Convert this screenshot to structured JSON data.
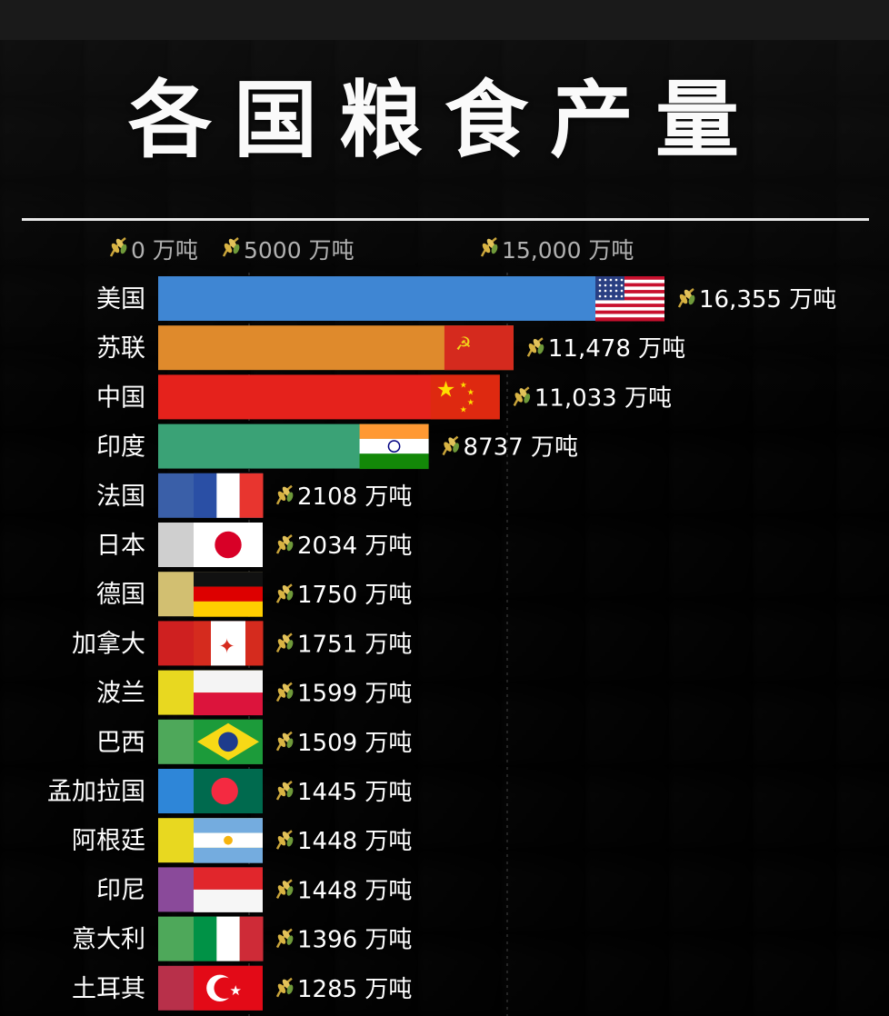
{
  "title": "各国粮食产量",
  "chart_data": {
    "type": "bar",
    "orientation": "horizontal",
    "title": "各国粮食产量",
    "unit": "万吨",
    "ticks": [
      "0 万吨",
      "5000 万吨",
      "15,000 万吨"
    ],
    "tick_values": [
      0,
      5000,
      15000
    ],
    "xlim": [
      0,
      16355
    ],
    "categories": [
      "美国",
      "苏联",
      "中国",
      "印度",
      "法国",
      "日本",
      "德国",
      "加拿大",
      "波兰",
      "巴西",
      "孟加拉国",
      "阿根廷",
      "印尼",
      "意大利",
      "土耳其"
    ],
    "values": [
      16355,
      11478,
      11033,
      8737,
      2108,
      2034,
      1750,
      1751,
      1599,
      1509,
      1445,
      1448,
      1448,
      1396,
      1285
    ],
    "value_labels": [
      "16,355 万吨",
      "11,478 万吨",
      "11,033 万吨",
      "8737 万吨",
      "2108 万吨",
      "2034 万吨",
      "1750 万吨",
      "1751 万吨",
      "1599 万吨",
      "1509 万吨",
      "1445 万吨",
      "1448 万吨",
      "1448 万吨",
      "1396 万吨",
      "1285 万吨"
    ],
    "bar_colors": [
      "#3f86d3",
      "#df8a2c",
      "#e5221c",
      "#3aa276",
      "#3a5fa8",
      "#cfcfcf",
      "#d2bf71",
      "#cf2020",
      "#e8d820",
      "#4ea85a",
      "#2e86d8",
      "#e8d820",
      "#8a4a9a",
      "#4ea85a",
      "#b8304a"
    ],
    "flags": [
      "usa",
      "ussr",
      "china",
      "india",
      "france",
      "japan",
      "germany",
      "canada",
      "poland",
      "brazil",
      "bangladesh",
      "argentina",
      "indonesia",
      "italy",
      "turkey"
    ],
    "grid": false,
    "legend": "none"
  }
}
